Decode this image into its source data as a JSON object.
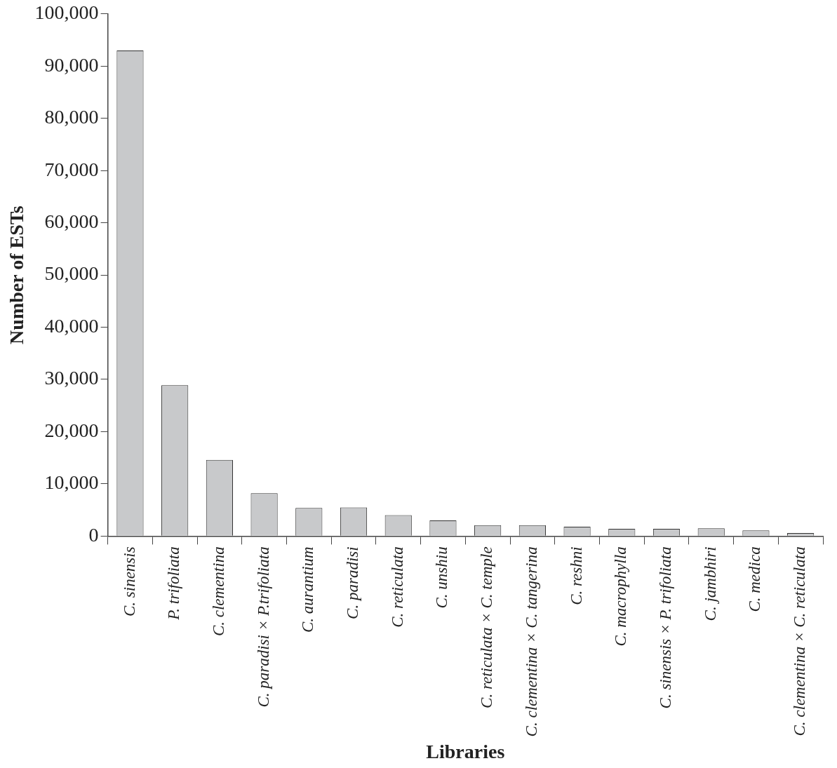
{
  "chart_data": {
    "type": "bar",
    "xlabel": "Libraries",
    "ylabel": "Number of ESTs",
    "categories": [
      "C. sinensis",
      "P. trifoliata",
      "C. clementina",
      "C. paradisi × P.trifoliata",
      "C. aurantium",
      "C. paradisi",
      "C. reticulata",
      "C. unshiu",
      "C. reticulata × C. temple",
      "C. clementina × C. tangerina",
      "C. reshni",
      "C. macrophylla",
      "C. sinensis × P. trifoliata",
      "C. jambhiri",
      "C. medica",
      "C. clementina × C. reticulata"
    ],
    "values": [
      93000,
      28900,
      14600,
      8200,
      5400,
      5500,
      4000,
      3000,
      2100,
      2100,
      1800,
      1400,
      1400,
      1500,
      1100,
      600
    ],
    "color": "#c8c9cb",
    "ylim": [
      0,
      100000
    ],
    "yticks": [
      {
        "value": 0,
        "label": "0"
      },
      {
        "value": 10000,
        "label": "10,000"
      },
      {
        "value": 20000,
        "label": "20,000"
      },
      {
        "value": 30000,
        "label": "30,000"
      },
      {
        "value": 40000,
        "label": "40,000"
      },
      {
        "value": 50000,
        "label": "50,000"
      },
      {
        "value": 60000,
        "label": "60,000"
      },
      {
        "value": 70000,
        "label": "70,000"
      },
      {
        "value": 80000,
        "label": "80,000"
      },
      {
        "value": 90000,
        "label": "90,000"
      },
      {
        "value": 100000,
        "label": "100,000"
      }
    ],
    "grid": false,
    "legend": false
  }
}
